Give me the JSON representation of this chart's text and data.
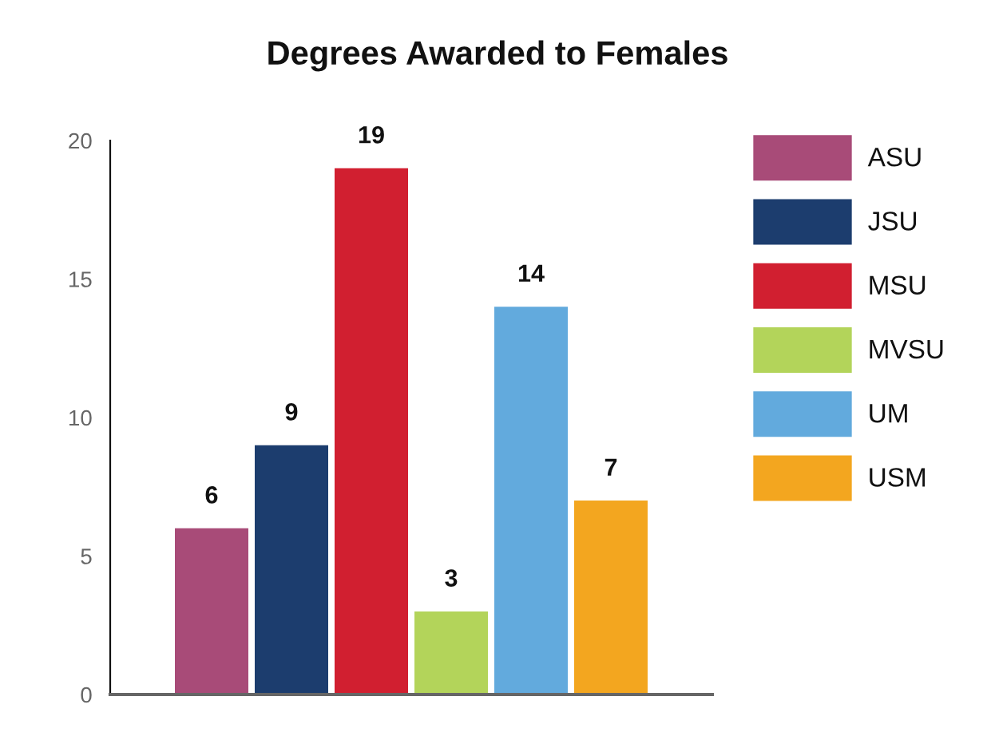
{
  "chart_data": {
    "type": "bar",
    "title": "Degrees Awarded to Females",
    "categories": [
      null
    ],
    "series": [
      {
        "name": "ASU",
        "color": "#a84b78",
        "values": [
          6
        ]
      },
      {
        "name": "JSU",
        "color": "#1c3d6e",
        "values": [
          9
        ]
      },
      {
        "name": "MSU",
        "color": "#d11f30",
        "values": [
          19
        ]
      },
      {
        "name": "MVSU",
        "color": "#b3d45a",
        "values": [
          3
        ]
      },
      {
        "name": "UM",
        "color": "#62aadd",
        "values": [
          14
        ]
      },
      {
        "name": "USM",
        "color": "#f3a61f",
        "values": [
          7
        ]
      }
    ],
    "ylim": [
      0,
      20
    ],
    "yticks": [
      0,
      5,
      10,
      15,
      20
    ],
    "data_labels": true,
    "legend": "right",
    "grid": false
  }
}
